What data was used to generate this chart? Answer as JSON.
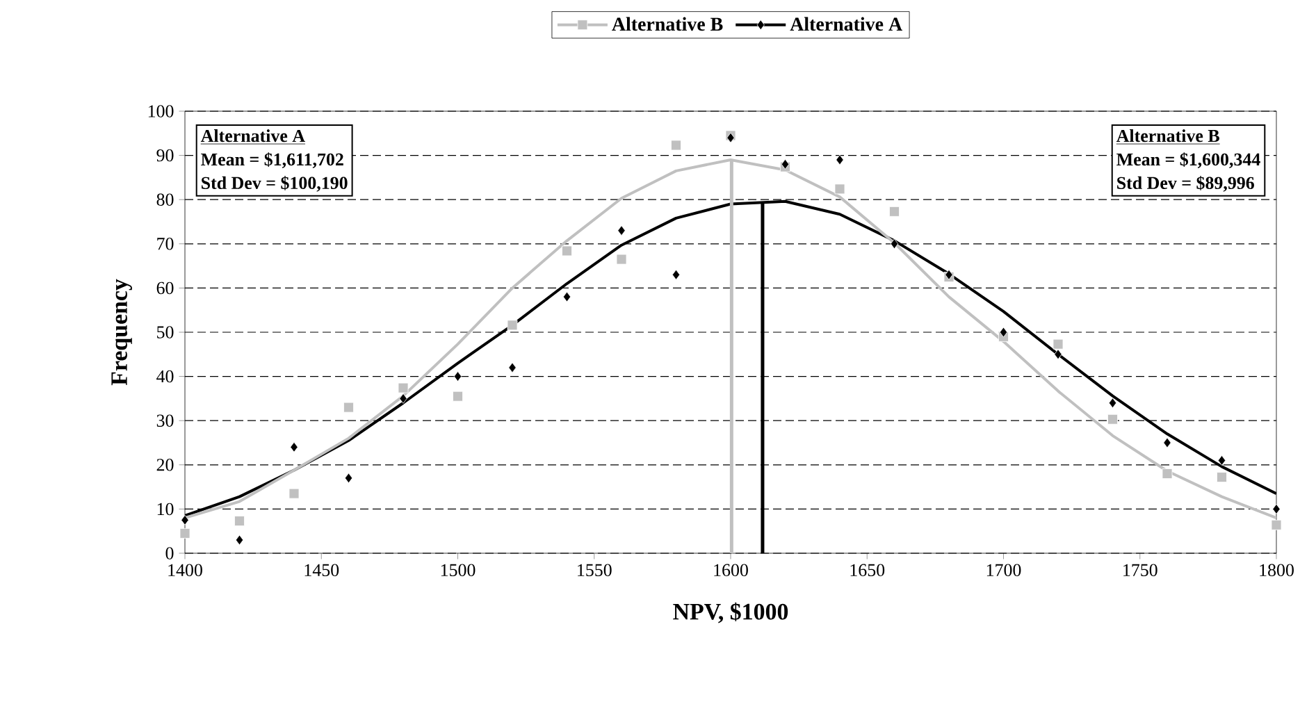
{
  "chart_data": {
    "type": "scatter",
    "xlabel": "NPV, $1000",
    "ylabel": "Frequency",
    "xlim": [
      1400,
      1800
    ],
    "ylim": [
      0,
      100
    ],
    "xticks": [
      1400,
      1450,
      1500,
      1550,
      1600,
      1650,
      1700,
      1750,
      1800
    ],
    "yticks": [
      0,
      10,
      20,
      30,
      40,
      50,
      60,
      70,
      80,
      90,
      100
    ],
    "grid": "y",
    "legend": "top",
    "series": [
      {
        "name": "Alternative A",
        "color": "#000000",
        "marker": "diamond",
        "x": [
          1400,
          1420,
          1440,
          1460,
          1480,
          1500,
          1520,
          1540,
          1560,
          1580,
          1600,
          1620,
          1640,
          1660,
          1680,
          1700,
          1720,
          1740,
          1760,
          1780,
          1800
        ],
        "values": [
          7.5,
          3,
          24,
          17,
          35,
          40,
          42,
          58,
          73,
          63,
          94,
          88,
          89,
          70,
          63,
          50,
          45,
          34,
          25,
          21,
          10
        ]
      },
      {
        "type": "line",
        "color": "#000000",
        "marker": "none",
        "x": [
          1400,
          1420,
          1440,
          1460,
          1480,
          1500,
          1520,
          1540,
          1560,
          1580,
          1600,
          1620,
          1640,
          1660,
          1680,
          1700,
          1720,
          1740,
          1760,
          1780,
          1800
        ],
        "values": [
          8.5,
          12.8,
          18.8,
          25.5,
          34,
          43,
          51.6,
          61,
          69.7,
          75.8,
          79,
          79.6,
          76.7,
          70.7,
          63.2,
          54.7,
          45,
          35.6,
          27,
          19.6,
          13.5
        ]
      },
      {
        "name": "Alternative B",
        "color": "#c0c0c0",
        "marker": "square",
        "x": [
          1400,
          1420,
          1440,
          1460,
          1480,
          1500,
          1520,
          1540,
          1560,
          1580,
          1600,
          1620,
          1640,
          1660,
          1680,
          1700,
          1720,
          1740,
          1760,
          1780,
          1800
        ],
        "values": [
          4.5,
          7.3,
          13.5,
          33,
          37.4,
          35.5,
          51.6,
          68.4,
          66.5,
          92.3,
          94.5,
          87.4,
          82.4,
          77.3,
          62.5,
          49,
          47.3,
          30.3,
          18,
          17.2,
          6.4
        ]
      },
      {
        "type": "line",
        "color": "#c0c0c0",
        "marker": "none",
        "x": [
          1400,
          1420,
          1440,
          1460,
          1480,
          1500,
          1520,
          1540,
          1560,
          1580,
          1600,
          1620,
          1640,
          1660,
          1680,
          1700,
          1720,
          1740,
          1760,
          1780,
          1800
        ],
        "values": [
          8,
          11.7,
          18.8,
          26,
          35.6,
          47.3,
          60,
          70.7,
          80.3,
          86.5,
          89,
          86.7,
          80.6,
          70.2,
          58,
          47.9,
          36.7,
          26.6,
          18.6,
          12.8,
          8
        ]
      }
    ],
    "ref_lines": [
      {
        "axis": "x",
        "value": 1611.702,
        "color": "#000000"
      },
      {
        "axis": "x",
        "value": 1600.344,
        "color": "#c0c0c0"
      }
    ],
    "annotations": [
      "Alternative A",
      "Mean = $1,611,702",
      "Std Dev = $100,190",
      "Alternative B",
      "Mean = $1,600,344",
      "Std Dev = $89,996"
    ]
  }
}
